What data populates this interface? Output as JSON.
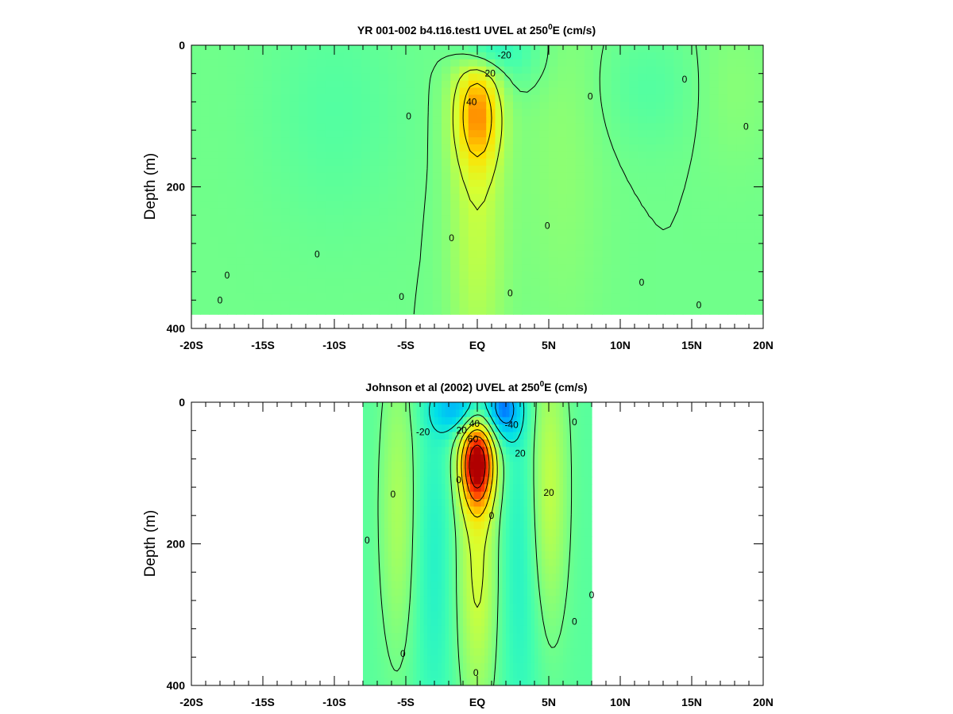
{
  "chart_data": [
    {
      "type": "heatmap",
      "title": "YR 001-002 b4.t16.test1 UVEL at 250",
      "title_sup": "0",
      "title_suffix": "E (cm/s)",
      "ylabel": "Depth (m)",
      "xlabel": "",
      "xlim": [
        -20,
        20
      ],
      "ylim": [
        400,
        0
      ],
      "y_inverted": true,
      "x_ticks": [
        {
          "v": -20,
          "label": "-20S"
        },
        {
          "v": -15,
          "label": "-15S"
        },
        {
          "v": -10,
          "label": "-10S"
        },
        {
          "v": -5,
          "label": "-5S"
        },
        {
          "v": 0,
          "label": "EQ"
        },
        {
          "v": 5,
          "label": "5N"
        },
        {
          "v": 10,
          "label": "10N"
        },
        {
          "v": 15,
          "label": "15N"
        },
        {
          "v": 20,
          "label": "20N"
        }
      ],
      "y_ticks": [
        {
          "v": 0,
          "label": "0"
        },
        {
          "v": 200,
          "label": "200"
        },
        {
          "v": 400,
          "label": "400"
        }
      ],
      "data_extent": {
        "lat": [
          -20,
          20
        ],
        "depth": [
          0,
          380
        ]
      },
      "background_value": 0,
      "features": [
        {
          "lat": 0,
          "depth": 95,
          "amp": 46,
          "slat": 1.1,
          "sdep": 55
        },
        {
          "lat": 0,
          "depth": 240,
          "amp": 18,
          "slat": 1.4,
          "sdep": 170
        },
        {
          "lat": 0.2,
          "depth": 8,
          "amp": -22,
          "slat": 1.3,
          "sdep": 22
        },
        {
          "lat": 2.5,
          "depth": 10,
          "amp": -10,
          "slat": 1.8,
          "sdep": 40
        },
        {
          "lat": -10,
          "depth": 90,
          "amp": -6,
          "slat": 3.5,
          "sdep": 120
        },
        {
          "lat": 6,
          "depth": 150,
          "amp": 6,
          "slat": 2.0,
          "sdep": 200
        },
        {
          "lat": 12,
          "depth": 60,
          "amp": -6,
          "slat": 2.5,
          "sdep": 60
        },
        {
          "lat": 18,
          "depth": 60,
          "amp": 5,
          "slat": 2.0,
          "sdep": 80
        }
      ],
      "contour_labels": [
        {
          "text": "-20",
          "lat": 1.9,
          "depth": 14
        },
        {
          "text": "20",
          "lat": 0.9,
          "depth": 40
        },
        {
          "text": "40",
          "lat": -0.4,
          "depth": 80
        },
        {
          "text": "0",
          "lat": -17.5,
          "depth": 325
        },
        {
          "text": "0",
          "lat": -18.0,
          "depth": 360
        },
        {
          "text": "0",
          "lat": -11.2,
          "depth": 295
        },
        {
          "text": "0",
          "lat": -4.8,
          "depth": 100
        },
        {
          "text": "0",
          "lat": -5.3,
          "depth": 355
        },
        {
          "text": "0",
          "lat": -1.8,
          "depth": 272
        },
        {
          "text": "0",
          "lat": 2.3,
          "depth": 350
        },
        {
          "text": "0",
          "lat": 4.9,
          "depth": 255
        },
        {
          "text": "0",
          "lat": 7.9,
          "depth": 72
        },
        {
          "text": "0",
          "lat": 11.5,
          "depth": 335
        },
        {
          "text": "0",
          "lat": 14.5,
          "depth": 48
        },
        {
          "text": "0",
          "lat": 15.5,
          "depth": 367
        },
        {
          "text": "0",
          "lat": 18.8,
          "depth": 115
        }
      ]
    },
    {
      "type": "heatmap",
      "title": "Johnson et al (2002) UVEL at 250",
      "title_sup": "0",
      "title_suffix": "E (cm/s)",
      "ylabel": "Depth (m)",
      "xlabel": "",
      "xlim": [
        -20,
        20
      ],
      "ylim": [
        400,
        0
      ],
      "y_inverted": true,
      "x_ticks": [
        {
          "v": -20,
          "label": "-20S"
        },
        {
          "v": -15,
          "label": "-15S"
        },
        {
          "v": -10,
          "label": "-10S"
        },
        {
          "v": -5,
          "label": "-5S"
        },
        {
          "v": 0,
          "label": "EQ"
        },
        {
          "v": 5,
          "label": "5N"
        },
        {
          "v": 10,
          "label": "10N"
        },
        {
          "v": 15,
          "label": "15N"
        },
        {
          "v": 20,
          "label": "20N"
        }
      ],
      "y_ticks": [
        {
          "v": 0,
          "label": "0"
        },
        {
          "v": 200,
          "label": "200"
        },
        {
          "v": 400,
          "label": "400"
        }
      ],
      "data_extent": {
        "lat": [
          -8,
          8
        ],
        "depth": [
          0,
          400
        ]
      },
      "background_value": -5,
      "features": [
        {
          "lat": 0,
          "depth": 85,
          "amp": 90,
          "slat": 0.85,
          "sdep": 45
        },
        {
          "lat": 0,
          "depth": 230,
          "amp": 28,
          "slat": 1.0,
          "sdep": 140
        },
        {
          "lat": -1,
          "depth": 10,
          "amp": -38,
          "slat": 1.4,
          "sdep": 25
        },
        {
          "lat": 1.8,
          "depth": 10,
          "amp": -40,
          "slat": 0.9,
          "sdep": 30
        },
        {
          "lat": 5,
          "depth": 120,
          "amp": 24,
          "slat": 0.9,
          "sdep": 140
        },
        {
          "lat": -5.5,
          "depth": 150,
          "amp": 18,
          "slat": 0.9,
          "sdep": 150
        },
        {
          "lat": -3,
          "depth": 220,
          "amp": -12,
          "slat": 1.1,
          "sdep": 200
        },
        {
          "lat": 3,
          "depth": 220,
          "amp": -12,
          "slat": 1.1,
          "sdep": 200
        }
      ],
      "contour_labels": [
        {
          "text": "-20",
          "lat": -3.8,
          "depth": 42
        },
        {
          "text": "-40",
          "lat": 2.4,
          "depth": 32
        },
        {
          "text": "40",
          "lat": -0.2,
          "depth": 30
        },
        {
          "text": "60",
          "lat": -0.3,
          "depth": 52
        },
        {
          "text": "20",
          "lat": -1.1,
          "depth": 40
        },
        {
          "text": "20",
          "lat": 3.0,
          "depth": 72
        },
        {
          "text": "20",
          "lat": 5.0,
          "depth": 128
        },
        {
          "text": "0",
          "lat": -1.3,
          "depth": 110
        },
        {
          "text": "0",
          "lat": -5.9,
          "depth": 130
        },
        {
          "text": "0",
          "lat": -7.7,
          "depth": 195
        },
        {
          "text": "0",
          "lat": -5.2,
          "depth": 355
        },
        {
          "text": "0",
          "lat": -0.1,
          "depth": 382
        },
        {
          "text": "0",
          "lat": 1.0,
          "depth": 160
        },
        {
          "text": "0",
          "lat": 6.8,
          "depth": 28
        },
        {
          "text": "0",
          "lat": 6.8,
          "depth": 310
        },
        {
          "text": "0",
          "lat": 8.0,
          "depth": 272
        }
      ]
    }
  ],
  "colors": {
    "colormap": [
      "#0033ff",
      "#00a8ff",
      "#00e0e8",
      "#40ffb0",
      "#90ff70",
      "#d8ff30",
      "#ffe000",
      "#ff9000",
      "#ff3000",
      "#b00000"
    ],
    "color_range": [
      -60,
      90
    ],
    "missing": "#ffffff"
  }
}
